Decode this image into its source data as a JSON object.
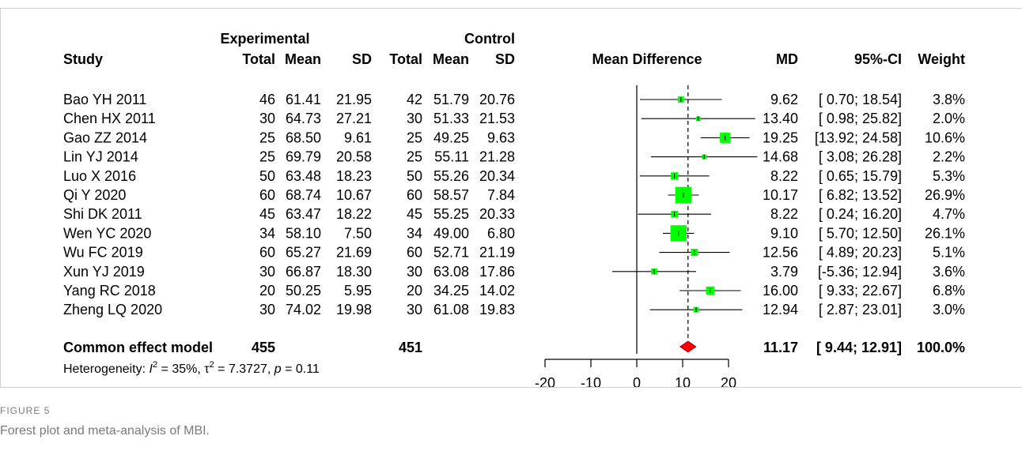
{
  "figure": {
    "label": "FIGURE 5",
    "caption": "Forest plot and meta-analysis of MBI."
  },
  "chart_data": {
    "type": "forest",
    "headers": {
      "study": "Study",
      "experimental": "Experimental",
      "control": "Control",
      "total": "Total",
      "mean": "Mean",
      "sd": "SD",
      "plot": "Mean Difference",
      "md": "MD",
      "ci": "95%-CI",
      "weight": "Weight"
    },
    "studies": [
      {
        "study": "Bao YH 2011",
        "e_total": "46",
        "e_mean": "61.41",
        "e_sd": "21.95",
        "c_total": "42",
        "c_mean": "51.79",
        "c_sd": "20.76",
        "md_text": "9.62",
        "ci_text": "[ 0.70; 18.54]",
        "weight_text": "3.8%",
        "md": 9.62,
        "lo": 0.7,
        "hi": 18.54,
        "weight": 3.8
      },
      {
        "study": "Chen HX 2011",
        "e_total": "30",
        "e_mean": "64.73",
        "e_sd": "27.21",
        "c_total": "30",
        "c_mean": "51.33",
        "c_sd": "21.53",
        "md_text": "13.40",
        "ci_text": "[ 0.98; 25.82]",
        "weight_text": "2.0%",
        "md": 13.4,
        "lo": 0.98,
        "hi": 25.82,
        "weight": 2.0
      },
      {
        "study": "Gao ZZ 2014",
        "e_total": "25",
        "e_mean": "68.50",
        "e_sd": "9.61",
        "c_total": "25",
        "c_mean": "49.25",
        "c_sd": "9.63",
        "md_text": "19.25",
        "ci_text": "[13.92; 24.58]",
        "weight_text": "10.6%",
        "md": 19.25,
        "lo": 13.92,
        "hi": 24.58,
        "weight": 10.6
      },
      {
        "study": "Lin YJ 2014",
        "e_total": "25",
        "e_mean": "69.79",
        "e_sd": "20.58",
        "c_total": "25",
        "c_mean": "55.11",
        "c_sd": "21.28",
        "md_text": "14.68",
        "ci_text": "[ 3.08; 26.28]",
        "weight_text": "2.2%",
        "md": 14.68,
        "lo": 3.08,
        "hi": 26.28,
        "weight": 2.2
      },
      {
        "study": "Luo X 2016",
        "e_total": "50",
        "e_mean": "63.48",
        "e_sd": "18.23",
        "c_total": "50",
        "c_mean": "55.26",
        "c_sd": "20.34",
        "md_text": "8.22",
        "ci_text": "[ 0.65; 15.79]",
        "weight_text": "5.3%",
        "md": 8.22,
        "lo": 0.65,
        "hi": 15.79,
        "weight": 5.3
      },
      {
        "study": "Qi Y 2020",
        "e_total": "60",
        "e_mean": "68.74",
        "e_sd": "10.67",
        "c_total": "60",
        "c_mean": "58.57",
        "c_sd": "7.84",
        "md_text": "10.17",
        "ci_text": "[ 6.82; 13.52]",
        "weight_text": "26.9%",
        "md": 10.17,
        "lo": 6.82,
        "hi": 13.52,
        "weight": 26.9
      },
      {
        "study": "Shi DK 2011",
        "e_total": "45",
        "e_mean": "63.47",
        "e_sd": "18.22",
        "c_total": "45",
        "c_mean": "55.25",
        "c_sd": "20.33",
        "md_text": "8.22",
        "ci_text": "[ 0.24; 16.20]",
        "weight_text": "4.7%",
        "md": 8.22,
        "lo": 0.24,
        "hi": 16.2,
        "weight": 4.7
      },
      {
        "study": "Wen YC 2020",
        "e_total": "34",
        "e_mean": "58.10",
        "e_sd": "7.50",
        "c_total": "34",
        "c_mean": "49.00",
        "c_sd": "6.80",
        "md_text": "9.10",
        "ci_text": "[ 5.70; 12.50]",
        "weight_text": "26.1%",
        "md": 9.1,
        "lo": 5.7,
        "hi": 12.5,
        "weight": 26.1
      },
      {
        "study": "Wu FC 2019",
        "e_total": "60",
        "e_mean": "65.27",
        "e_sd": "21.69",
        "c_total": "60",
        "c_mean": "52.71",
        "c_sd": "21.19",
        "md_text": "12.56",
        "ci_text": "[ 4.89; 20.23]",
        "weight_text": "5.1%",
        "md": 12.56,
        "lo": 4.89,
        "hi": 20.23,
        "weight": 5.1
      },
      {
        "study": "Xun YJ 2019",
        "e_total": "30",
        "e_mean": "66.87",
        "e_sd": "18.30",
        "c_total": "30",
        "c_mean": "63.08",
        "c_sd": "17.86",
        "md_text": "3.79",
        "ci_text": "[-5.36; 12.94]",
        "weight_text": "3.6%",
        "md": 3.79,
        "lo": -5.36,
        "hi": 12.94,
        "weight": 3.6
      },
      {
        "study": "Yang RC 2018",
        "e_total": "20",
        "e_mean": "50.25",
        "e_sd": "5.95",
        "c_total": "20",
        "c_mean": "34.25",
        "c_sd": "14.02",
        "md_text": "16.00",
        "ci_text": "[ 9.33; 22.67]",
        "weight_text": "6.8%",
        "md": 16.0,
        "lo": 9.33,
        "hi": 22.67,
        "weight": 6.8
      },
      {
        "study": "Zheng LQ 2020",
        "e_total": "30",
        "e_mean": "74.02",
        "e_sd": "19.98",
        "c_total": "30",
        "c_mean": "61.08",
        "c_sd": "19.83",
        "md_text": "12.94",
        "ci_text": "[ 2.87; 23.01]",
        "weight_text": "3.0%",
        "md": 12.94,
        "lo": 2.87,
        "hi": 23.01,
        "weight": 3.0
      }
    ],
    "pooled": {
      "label": "Common effect model",
      "e_total": "455",
      "c_total": "451",
      "md_text": "11.17",
      "ci_text": "[ 9.44; 12.91]",
      "weight_text": "100.0%",
      "md": 11.17,
      "lo": 9.44,
      "hi": 12.91
    },
    "heterogeneity": {
      "prefix": "Heterogeneity: ",
      "i_sym": "I",
      "i_value": " = 35%, ",
      "tau_sym": "τ",
      "tau_value": " = 7.3727, ",
      "p_sym": "p",
      "p_value": " = 0.11",
      "sup": "2"
    },
    "xaxis": {
      "ticks": [
        -20,
        -10,
        0,
        10,
        20
      ],
      "range": [
        -20,
        20
      ]
    },
    "colors": {
      "square": "#00ff00",
      "diamond": "#ff0000",
      "line": "#000000"
    }
  }
}
